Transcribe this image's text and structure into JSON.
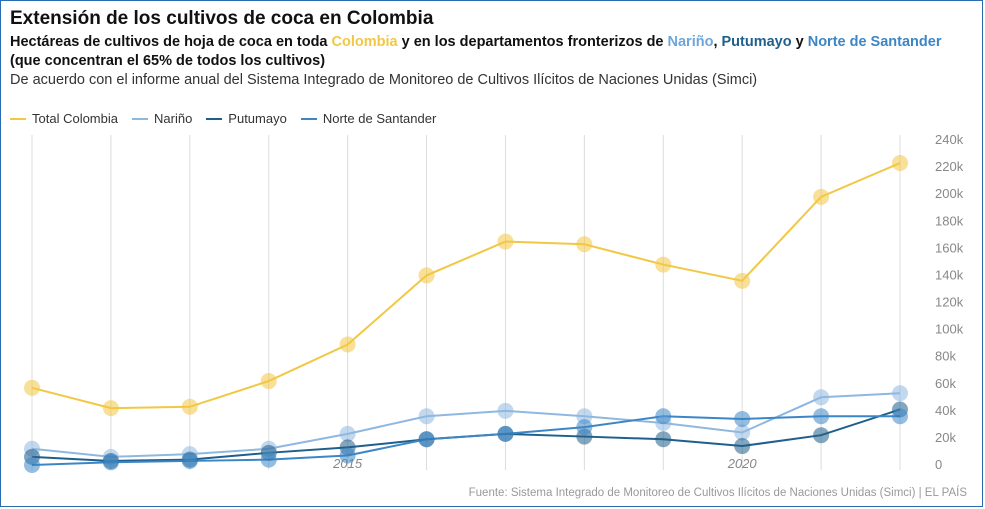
{
  "header": {
    "title": "Extensión de los cultivos de coca en Colombia",
    "subtitle_parts": [
      {
        "text": "Hectáreas de cultivos de hoja de coca en toda ",
        "color": "#111111"
      },
      {
        "text": "Colombia",
        "color": "#f2c744"
      },
      {
        "text": " y en los departamentos fronterizos de ",
        "color": "#111111"
      },
      {
        "text": "Nariño",
        "color": "#6fa6d9"
      },
      {
        "text": ", ",
        "color": "#111111"
      },
      {
        "text": "Putumayo",
        "color": "#1f5f8b"
      },
      {
        "text": " y ",
        "color": "#111111"
      },
      {
        "text": "Norte de Santander",
        "color": "#3d86c6"
      },
      {
        "text": " (que concentran el 65% de todos los cultivos)",
        "color": "#111111"
      }
    ],
    "description": "De acuerdo con el informe anual del Sistema Integrado de Monitoreo de Cultivos Ilícitos de Naciones Unidas (Simci)"
  },
  "source": "Fuente: Sistema Integrado de Monitoreo de Cultivos Ilícitos de Naciones Unidas (Simci) | EL PAÍS",
  "chart_data": {
    "type": "line",
    "x": [
      2011,
      2012,
      2013,
      2014,
      2015,
      2016,
      2017,
      2018,
      2019,
      2020,
      2021,
      2022
    ],
    "x_tick_labels": [
      {
        "x": 2015,
        "label": "2015"
      },
      {
        "x": 2020,
        "label": "2020"
      }
    ],
    "ylim": [
      0,
      240000
    ],
    "y_ticks": [
      0,
      20000,
      40000,
      60000,
      80000,
      100000,
      120000,
      140000,
      160000,
      180000,
      200000,
      220000,
      240000
    ],
    "y_tick_labels": [
      "0",
      "20k",
      "40k",
      "60k",
      "80k",
      "100k",
      "120k",
      "140k",
      "160k",
      "180k",
      "200k",
      "220k",
      "240k"
    ],
    "grid": "vertical",
    "legend_position": "top-left",
    "series": [
      {
        "name": "Total Colombia",
        "color": "#f2c744",
        "values": [
          57000,
          42000,
          43000,
          62000,
          89000,
          140000,
          165000,
          163000,
          148000,
          136000,
          198000,
          223000
        ]
      },
      {
        "name": "Nariño",
        "color": "#8fb8e0",
        "values": [
          12000,
          6000,
          8000,
          12000,
          23000,
          36000,
          40000,
          36000,
          31000,
          24000,
          50000,
          53000
        ]
      },
      {
        "name": "Putumayo",
        "color": "#1f5f8b",
        "values": [
          6000,
          3000,
          4000,
          9000,
          13000,
          19000,
          23000,
          21000,
          19000,
          14000,
          22000,
          41000
        ]
      },
      {
        "name": "Norte de Santander",
        "color": "#3d86c6",
        "values": [
          0,
          2000,
          3000,
          4000,
          7000,
          19000,
          23000,
          28000,
          36000,
          34000,
          36000,
          36000
        ]
      }
    ]
  }
}
